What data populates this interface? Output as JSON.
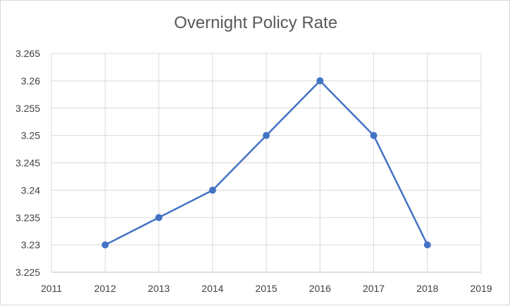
{
  "chart_data": {
    "type": "scatter",
    "title": "Overnight Policy Rate",
    "xlabel": "",
    "ylabel": "",
    "xlim": [
      2011,
      2019
    ],
    "ylim": [
      3.225,
      3.265
    ],
    "x_ticks": [
      "2011",
      "2012",
      "2013",
      "2014",
      "2015",
      "2016",
      "2017",
      "2018",
      "2019"
    ],
    "y_ticks": [
      "3.225",
      "3.23",
      "3.235",
      "3.24",
      "3.245",
      "3.25",
      "3.255",
      "3.26",
      "3.265"
    ],
    "grid": true,
    "legend": "none",
    "series": [
      {
        "x": [
          2012,
          2013,
          2014,
          2015,
          2016,
          2017,
          2018
        ],
        "y": [
          3.23,
          3.235,
          3.24,
          3.25,
          3.26,
          3.25,
          3.23
        ],
        "color": "#4472c4",
        "markers": true,
        "lines": true
      }
    ]
  }
}
